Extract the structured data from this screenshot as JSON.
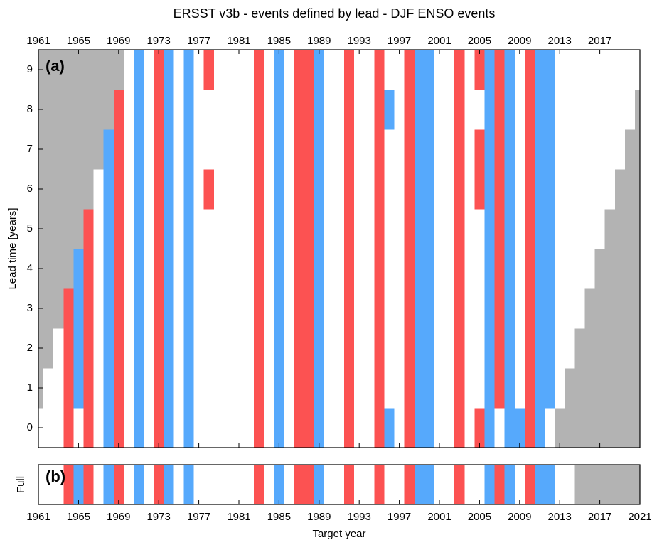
{
  "chart_data": {
    "type": "heatmap",
    "title": "ERSST v3b - events defined by lead - DJF ENSO events",
    "xlabel": "Target year",
    "xlim": [
      1961,
      2021
    ],
    "xticks": [
      1961,
      1965,
      1969,
      1973,
      1977,
      1981,
      1985,
      1989,
      1993,
      1997,
      2001,
      2005,
      2009,
      2013,
      2017,
      2021
    ],
    "xticks_top": [
      1961,
      1965,
      1969,
      1973,
      1977,
      1981,
      1985,
      1989,
      1993,
      1997,
      2001,
      2005,
      2009,
      2013,
      2017
    ],
    "x": [
      1961,
      1962,
      1963,
      1964,
      1965,
      1966,
      1967,
      1968,
      1969,
      1970,
      1971,
      1972,
      1973,
      1974,
      1975,
      1976,
      1977,
      1978,
      1979,
      1980,
      1981,
      1982,
      1983,
      1984,
      1985,
      1986,
      1987,
      1988,
      1989,
      1990,
      1991,
      1992,
      1993,
      1994,
      1995,
      1996,
      1997,
      1998,
      1999,
      2000,
      2001,
      2002,
      2003,
      2004,
      2005,
      2006,
      2007,
      2008,
      2009,
      2010,
      2011,
      2012,
      2013,
      2014,
      2015,
      2016,
      2017,
      2018,
      2019,
      2020,
      2021
    ],
    "colors": {
      "positive": "#fc5252",
      "negative": "#56a9fc",
      "neutral": "#ffffff",
      "missing": "#b3b3b3"
    },
    "panel_a": {
      "label": "(a)",
      "ylabel": "Lead time [years]",
      "ylim": [
        -0.5,
        9.5
      ],
      "yticks": [
        0,
        1,
        2,
        3,
        4,
        5,
        6,
        7,
        8,
        9
      ],
      "y": [
        0,
        1,
        2,
        3,
        4,
        5,
        6,
        7,
        8,
        9
      ],
      "z": [
        [
          0,
          null,
          null,
          null,
          null,
          null,
          null,
          null,
          null,
          null
        ],
        [
          0,
          0,
          null,
          null,
          null,
          null,
          null,
          null,
          null,
          null
        ],
        [
          0,
          0,
          0,
          null,
          null,
          null,
          null,
          null,
          null,
          null
        ],
        [
          1,
          1,
          1,
          1,
          null,
          null,
          null,
          null,
          null,
          null
        ],
        [
          0,
          -1,
          -1,
          -1,
          -1,
          null,
          null,
          null,
          null,
          null
        ],
        [
          1,
          1,
          1,
          1,
          1,
          1,
          null,
          null,
          null,
          null
        ],
        [
          0,
          0,
          0,
          0,
          0,
          0,
          0,
          null,
          null,
          null
        ],
        [
          -1,
          -1,
          -1,
          -1,
          -1,
          -1,
          -1,
          -1,
          null,
          null
        ],
        [
          1,
          1,
          1,
          1,
          1,
          1,
          1,
          1,
          1,
          null
        ],
        [
          0,
          0,
          0,
          0,
          0,
          0,
          0,
          0,
          0,
          0
        ],
        [
          -1,
          -1,
          -1,
          -1,
          -1,
          -1,
          -1,
          -1,
          -1,
          -1
        ],
        [
          0,
          0,
          0,
          0,
          0,
          0,
          0,
          0,
          0,
          0
        ],
        [
          1,
          1,
          1,
          1,
          1,
          1,
          1,
          1,
          1,
          1
        ],
        [
          -1,
          -1,
          -1,
          -1,
          -1,
          -1,
          -1,
          -1,
          -1,
          -1
        ],
        [
          0,
          0,
          0,
          0,
          0,
          0,
          0,
          0,
          0,
          0
        ],
        [
          -1,
          -1,
          -1,
          -1,
          -1,
          -1,
          -1,
          -1,
          -1,
          -1
        ],
        [
          0,
          0,
          0,
          0,
          0,
          0,
          0,
          0,
          0,
          0
        ],
        [
          0,
          0,
          0,
          0,
          0,
          0,
          1,
          0,
          0,
          1
        ],
        [
          0,
          0,
          0,
          0,
          0,
          0,
          0,
          0,
          0,
          0
        ],
        [
          0,
          0,
          0,
          0,
          0,
          0,
          0,
          0,
          0,
          0
        ],
        [
          0,
          0,
          0,
          0,
          0,
          0,
          0,
          0,
          0,
          0
        ],
        [
          0,
          0,
          0,
          0,
          0,
          0,
          0,
          0,
          0,
          0
        ],
        [
          1,
          1,
          1,
          1,
          1,
          1,
          1,
          1,
          1,
          1
        ],
        [
          0,
          0,
          0,
          0,
          0,
          0,
          0,
          0,
          0,
          0
        ],
        [
          -1,
          -1,
          -1,
          -1,
          -1,
          -1,
          -1,
          -1,
          -1,
          -1
        ],
        [
          0,
          0,
          0,
          0,
          0,
          0,
          0,
          0,
          0,
          0
        ],
        [
          1,
          1,
          1,
          1,
          1,
          1,
          1,
          1,
          1,
          1
        ],
        [
          1,
          1,
          1,
          1,
          1,
          1,
          1,
          1,
          1,
          1
        ],
        [
          -1,
          -1,
          -1,
          -1,
          -1,
          -1,
          -1,
          -1,
          -1,
          -1
        ],
        [
          0,
          0,
          0,
          0,
          0,
          0,
          0,
          0,
          0,
          0
        ],
        [
          0,
          0,
          0,
          0,
          0,
          0,
          0,
          0,
          0,
          0
        ],
        [
          1,
          1,
          1,
          1,
          1,
          1,
          1,
          1,
          1,
          1
        ],
        [
          0,
          0,
          0,
          0,
          0,
          0,
          0,
          0,
          0,
          0
        ],
        [
          0,
          0,
          0,
          0,
          0,
          0,
          0,
          0,
          0,
          0
        ],
        [
          1,
          1,
          1,
          1,
          1,
          1,
          1,
          1,
          1,
          1
        ],
        [
          -1,
          0,
          0,
          0,
          0,
          0,
          0,
          0,
          -1,
          0
        ],
        [
          0,
          0,
          0,
          0,
          0,
          0,
          0,
          0,
          0,
          0
        ],
        [
          1,
          1,
          1,
          1,
          1,
          1,
          1,
          1,
          1,
          1
        ],
        [
          -1,
          -1,
          -1,
          -1,
          -1,
          -1,
          -1,
          -1,
          -1,
          -1
        ],
        [
          -1,
          -1,
          -1,
          -1,
          -1,
          -1,
          -1,
          -1,
          -1,
          -1
        ],
        [
          0,
          0,
          0,
          0,
          0,
          0,
          0,
          0,
          0,
          0
        ],
        [
          0,
          0,
          0,
          0,
          0,
          0,
          0,
          0,
          0,
          0
        ],
        [
          1,
          1,
          1,
          1,
          1,
          1,
          1,
          1,
          1,
          1
        ],
        [
          0,
          0,
          0,
          0,
          0,
          0,
          0,
          0,
          0,
          0
        ],
        [
          1,
          0,
          0,
          0,
          0,
          0,
          1,
          1,
          0,
          1
        ],
        [
          -1,
          -1,
          -1,
          -1,
          -1,
          -1,
          -1,
          -1,
          -1,
          -1
        ],
        [
          0,
          1,
          1,
          1,
          1,
          1,
          1,
          1,
          1,
          1
        ],
        [
          -1,
          -1,
          -1,
          -1,
          -1,
          -1,
          -1,
          -1,
          -1,
          -1
        ],
        [
          -1,
          0,
          0,
          0,
          0,
          0,
          0,
          0,
          0,
          0
        ],
        [
          1,
          1,
          1,
          1,
          1,
          1,
          1,
          1,
          1,
          1
        ],
        [
          -1,
          -1,
          -1,
          -1,
          -1,
          -1,
          -1,
          -1,
          -1,
          -1
        ],
        [
          0,
          -1,
          -1,
          -1,
          -1,
          -1,
          -1,
          -1,
          -1,
          -1
        ],
        [
          null,
          0,
          0,
          0,
          0,
          0,
          0,
          0,
          0,
          0
        ],
        [
          null,
          null,
          0,
          0,
          0,
          0,
          0,
          0,
          0,
          0
        ],
        [
          null,
          null,
          null,
          0,
          0,
          0,
          0,
          0,
          0,
          0
        ],
        [
          null,
          null,
          null,
          null,
          0,
          0,
          0,
          0,
          0,
          0
        ],
        [
          null,
          null,
          null,
          null,
          null,
          0,
          0,
          0,
          0,
          0
        ],
        [
          null,
          null,
          null,
          null,
          null,
          null,
          0,
          0,
          0,
          0
        ],
        [
          null,
          null,
          null,
          null,
          null,
          null,
          null,
          0,
          0,
          0
        ],
        [
          null,
          null,
          null,
          null,
          null,
          null,
          null,
          null,
          0,
          0
        ],
        [
          null,
          null,
          null,
          null,
          null,
          null,
          null,
          null,
          null,
          0
        ]
      ]
    },
    "panel_b": {
      "label": "(b)",
      "ylabel": "Full",
      "values": [
        0,
        0,
        0,
        1,
        -1,
        1,
        0,
        -1,
        1,
        0,
        -1,
        0,
        1,
        -1,
        0,
        -1,
        0,
        0,
        0,
        0,
        0,
        0,
        1,
        0,
        -1,
        0,
        1,
        1,
        -1,
        0,
        0,
        1,
        0,
        0,
        1,
        0,
        0,
        1,
        -1,
        -1,
        0,
        0,
        1,
        0,
        0,
        -1,
        1,
        -1,
        0,
        1,
        -1,
        -1,
        0,
        0,
        null,
        null,
        null,
        null,
        null,
        null,
        null
      ]
    }
  }
}
